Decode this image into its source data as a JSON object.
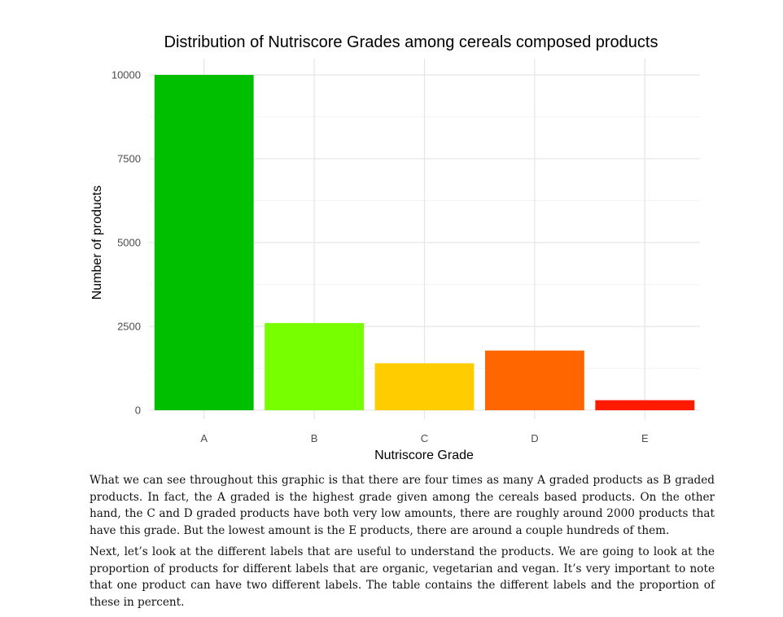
{
  "chart_data": {
    "type": "bar",
    "title": "Distribution of Nutriscore Grades among cereals composed products",
    "xlabel": "Nutriscore Grade",
    "ylabel": "Number of products",
    "categories": [
      "A",
      "B",
      "C",
      "D",
      "E"
    ],
    "values": [
      10000,
      2600,
      1400,
      1780,
      300
    ],
    "colors": [
      "#00bf00",
      "#77ff00",
      "#ffcc00",
      "#ff6600",
      "#ff1a00"
    ],
    "ylim": [
      0,
      10000
    ],
    "yticks": [
      0,
      2500,
      5000,
      7500,
      10000
    ],
    "ytick_labels": [
      "0",
      "2500",
      "5000",
      "7500",
      "10000"
    ],
    "grid": true,
    "legend": "none"
  },
  "text": {
    "paragraph_1": "What we can see throughout this graphic is that there are four times as many A graded products as B graded products. In fact, the A graded is the highest grade given among the cereals based products. On the other hand, the C and D graded products have both very low amounts, there are roughly around 2000 products that have this grade. But the lowest amount is the E products, there are around a couple hundreds of them.",
    "paragraph_2": "Next, let’s look at the different labels that are useful to understand the products. We are going to look at the proportion of products for different labels that are organic, vegetarian and vegan. It’s very important to note that one product can have two different labels. The table contains the different labels and the proportion of these in percent."
  }
}
